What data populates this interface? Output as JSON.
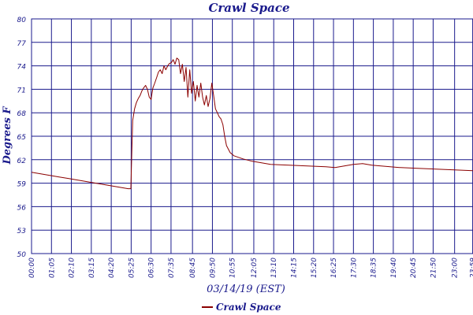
{
  "chart_data": {
    "type": "line",
    "title": "Crawl Space",
    "xlabel": "03/14/19 (EST)",
    "ylabel": "Degrees F",
    "ylim": [
      50,
      80
    ],
    "yticks": [
      "80",
      "77",
      "74",
      "71",
      "68",
      "65",
      "62",
      "59",
      "56",
      "53",
      "50"
    ],
    "xtick_labels": [
      "00:00",
      "01:05",
      "02:10",
      "03:15",
      "04:20",
      "05:25",
      "06:30",
      "07:35",
      "08:45",
      "09:50",
      "10:55",
      "12:05",
      "13:10",
      "14:15",
      "15:20",
      "16:25",
      "17:30",
      "18:35",
      "19:40",
      "20:45",
      "21:50",
      "23:00",
      "23:59"
    ],
    "grid": true,
    "legend_position": "bottom-center",
    "colors": {
      "series": "#8b0000",
      "grid": "#1a1a8c",
      "text": "#1a1a8c"
    },
    "series": [
      {
        "name": "Crawl Space",
        "x_hours": [
          0.0,
          0.25,
          0.5,
          0.75,
          1.0,
          1.5,
          2.0,
          2.5,
          3.0,
          3.5,
          4.0,
          4.5,
          5.0,
          5.25,
          5.4,
          5.45,
          5.5,
          5.6,
          5.7,
          5.8,
          5.9,
          6.0,
          6.1,
          6.2,
          6.3,
          6.4,
          6.5,
          6.55,
          6.6,
          6.7,
          6.8,
          6.9,
          7.0,
          7.1,
          7.2,
          7.3,
          7.4,
          7.5,
          7.6,
          7.7,
          7.8,
          7.9,
          8.0,
          8.1,
          8.2,
          8.3,
          8.4,
          8.5,
          8.6,
          8.7,
          8.8,
          8.9,
          9.0,
          9.1,
          9.2,
          9.3,
          9.4,
          9.5,
          9.6,
          9.7,
          9.8,
          9.9,
          10.0,
          10.1,
          10.2,
          10.3,
          10.4,
          10.5,
          10.6,
          10.8,
          11.0,
          11.5,
          12.0,
          12.5,
          13.0,
          14.0,
          15.0,
          16.0,
          16.5,
          17.0,
          17.5,
          18.0,
          18.5,
          19.0,
          20.0,
          21.0,
          22.0,
          23.0,
          23.99
        ],
        "y": [
          60.4,
          60.3,
          60.2,
          60.1,
          60.0,
          59.8,
          59.6,
          59.4,
          59.2,
          59.0,
          58.8,
          58.6,
          58.4,
          58.3,
          58.3,
          63.0,
          67.0,
          68.5,
          69.3,
          69.8,
          70.2,
          70.8,
          71.2,
          71.5,
          71.0,
          70.0,
          69.7,
          70.5,
          71.2,
          71.8,
          72.5,
          73.2,
          73.5,
          73.0,
          74.0,
          73.5,
          74.0,
          74.3,
          74.4,
          74.8,
          74.2,
          75.0,
          74.8,
          73.0,
          74.2,
          72.0,
          73.8,
          70.0,
          73.5,
          70.5,
          72.0,
          69.5,
          71.5,
          70.0,
          71.8,
          70.0,
          69.0,
          70.2,
          68.8,
          69.8,
          71.8,
          70.2,
          68.5,
          68.0,
          67.5,
          67.2,
          66.5,
          65.0,
          63.8,
          62.9,
          62.5,
          62.1,
          61.8,
          61.6,
          61.4,
          61.3,
          61.2,
          61.1,
          61.0,
          61.2,
          61.4,
          61.5,
          61.3,
          61.2,
          61.0,
          60.9,
          60.8,
          60.7,
          60.6
        ]
      }
    ]
  }
}
